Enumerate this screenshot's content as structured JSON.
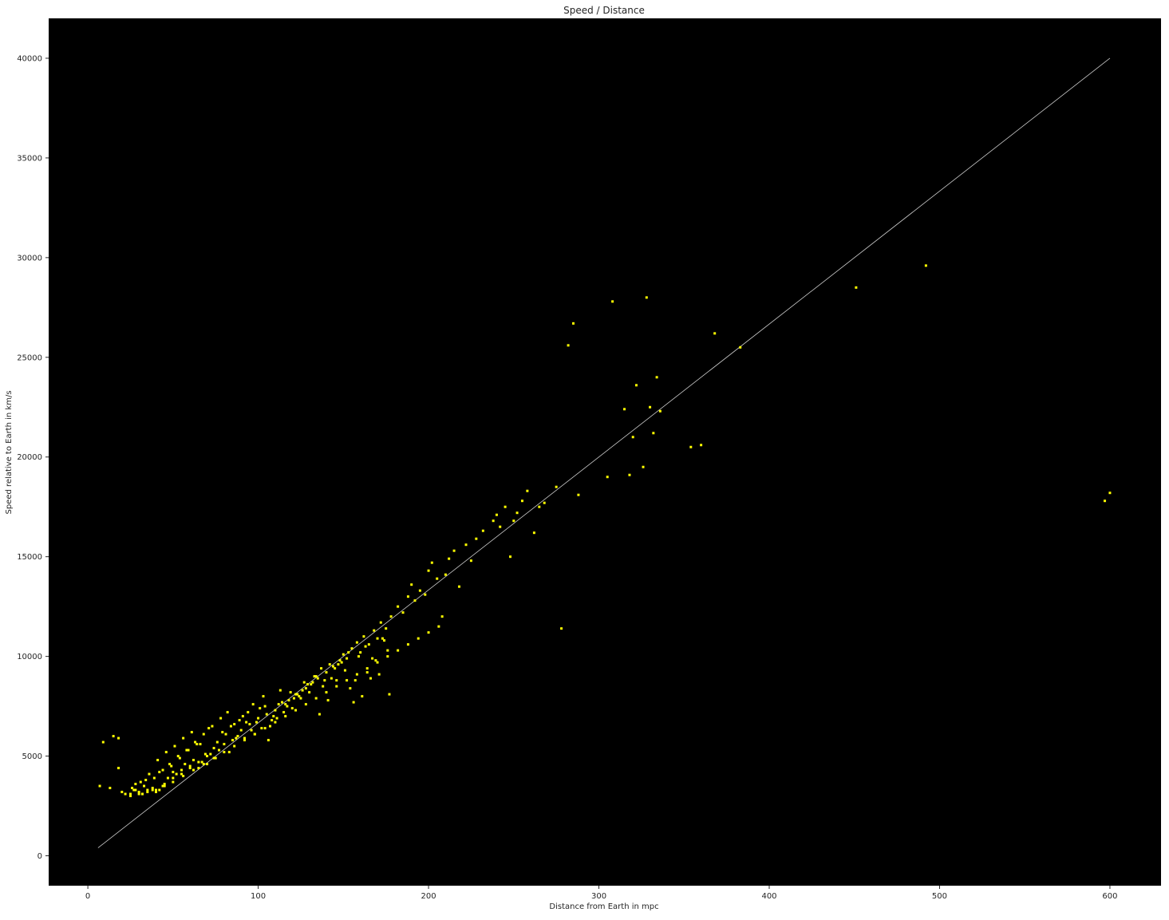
{
  "chart_data": {
    "type": "scatter",
    "title": "Speed / Distance",
    "xlabel": "Distance from Earth in mpc",
    "ylabel": "Speed relative to Earth in km/s",
    "xlim": [
      -23,
      630
    ],
    "ylim": [
      -1500,
      42000
    ],
    "xticks": [
      0,
      100,
      200,
      300,
      400,
      500,
      600
    ],
    "yticks": [
      0,
      5000,
      10000,
      15000,
      20000,
      25000,
      30000,
      35000,
      40000
    ],
    "grid": false,
    "legend": "none",
    "colors": {
      "plot_background": "#000000",
      "points": "#ffff00",
      "fit_line": "#cccccc"
    },
    "fit_line": {
      "x": [
        6,
        600
      ],
      "y": [
        400,
        40000
      ]
    },
    "series": [
      {
        "x": [
          7,
          9,
          13,
          15,
          18,
          18,
          20,
          25,
          28,
          30,
          32,
          35,
          38,
          40,
          42,
          45,
          47,
          50,
          52,
          55,
          57,
          60,
          62,
          65,
          67,
          70,
          72,
          75,
          77,
          80,
          83,
          85,
          88,
          90,
          92,
          95,
          98,
          100,
          102,
          105,
          108,
          110,
          112,
          115,
          118,
          120,
          122,
          125,
          128,
          130,
          132,
          135,
          138,
          140,
          142,
          145,
          148,
          150,
          152,
          155,
          158,
          160,
          162,
          165,
          168,
          170,
          172,
          175,
          178,
          182,
          185,
          188,
          190,
          192,
          195,
          198,
          200,
          202,
          205,
          208,
          210,
          212,
          215,
          218,
          222,
          225,
          228,
          232,
          238,
          240,
          242,
          245,
          248,
          250,
          252,
          255,
          258,
          262,
          265,
          268,
          275,
          278,
          282,
          285,
          288,
          305,
          308,
          315,
          318,
          320,
          322,
          326,
          328,
          330,
          332,
          334,
          336,
          354,
          360,
          368,
          383,
          451,
          492,
          597,
          600,
          30,
          35,
          40,
          45,
          50,
          55,
          60,
          65,
          70,
          22,
          26,
          31,
          36,
          41,
          46,
          51,
          56,
          61,
          66,
          71,
          76,
          81,
          86,
          91,
          96,
          101,
          106,
          111,
          116,
          121,
          126,
          131,
          136,
          141,
          146,
          151,
          156,
          161,
          166,
          171,
          176,
          27,
          33,
          39,
          44,
          49,
          54,
          59,
          64,
          69,
          74,
          79,
          84,
          89,
          94,
          99,
          104,
          109,
          114,
          119,
          124,
          129,
          134,
          139,
          144,
          149,
          154,
          159,
          164,
          169,
          174,
          28,
          34,
          42,
          48,
          53,
          58,
          63,
          68,
          73,
          78,
          82,
          87,
          93,
          97,
          103,
          107,
          113,
          117,
          123,
          127,
          133,
          137,
          143,
          147,
          153,
          157,
          163,
          167,
          173,
          177,
          25,
          32,
          38,
          44,
          50,
          56,
          62,
          68,
          74,
          80,
          86,
          92,
          98,
          104,
          110,
          116,
          122,
          128,
          134,
          140,
          146,
          152,
          158,
          164,
          170,
          176,
          182,
          188,
          194,
          200,
          206
        ],
        "y": [
          3500,
          5700,
          3400,
          6000,
          4400,
          5900,
          3200,
          3100,
          3300,
          3200,
          3100,
          3300,
          3400,
          3200,
          3300,
          3500,
          3900,
          4200,
          4100,
          4300,
          4600,
          4500,
          4800,
          4400,
          4700,
          4600,
          5100,
          4900,
          5300,
          5600,
          5200,
          5800,
          6000,
          6300,
          5900,
          6600,
          6100,
          6900,
          6400,
          7100,
          6800,
          7300,
          7600,
          7200,
          7800,
          7400,
          8100,
          7900,
          8400,
          8200,
          8700,
          8900,
          8500,
          9200,
          9600,
          9400,
          9800,
          10100,
          9900,
          10400,
          10700,
          10200,
          11000,
          10600,
          11300,
          10900,
          11700,
          11400,
          12000,
          12500,
          12200,
          13000,
          13600,
          12800,
          13300,
          13100,
          14300,
          14700,
          13900,
          12000,
          14100,
          14900,
          15300,
          13500,
          15600,
          14800,
          15900,
          16300,
          16800,
          17100,
          16500,
          17500,
          15000,
          16800,
          17200,
          17800,
          18300,
          16200,
          17500,
          17700,
          18500,
          11400,
          25600,
          26700,
          18100,
          19000,
          27800,
          22400,
          19100,
          21000,
          23600,
          19500,
          28000,
          22500,
          21200,
          24000,
          22300,
          20500,
          20600,
          26200,
          25500,
          28500,
          29600,
          17800,
          18200,
          3100,
          3200,
          3300,
          3600,
          3900,
          4100,
          4400,
          4700,
          5000,
          3100,
          3400,
          3700,
          4100,
          4800,
          5200,
          5500,
          5900,
          6200,
          5600,
          6400,
          5700,
          6100,
          6600,
          7000,
          6300,
          7400,
          5800,
          6900,
          7600,
          7900,
          8300,
          8600,
          7100,
          7800,
          8800,
          9300,
          7700,
          8000,
          8900,
          9100,
          10300,
          3300,
          3500,
          3900,
          4300,
          4500,
          4900,
          5300,
          5600,
          5100,
          5400,
          6200,
          6500,
          6800,
          7200,
          6700,
          7500,
          7000,
          7700,
          8200,
          8000,
          8600,
          9000,
          8800,
          9500,
          9700,
          8400,
          10000,
          9200,
          9800,
          10800,
          3600,
          3800,
          4200,
          4600,
          5000,
          5300,
          5700,
          6100,
          6500,
          6900,
          7200,
          5900,
          6700,
          7600,
          8000,
          6500,
          8300,
          7500,
          8100,
          8700,
          9000,
          9400,
          8900,
          9600,
          10200,
          8800,
          10500,
          9900,
          10900,
          8100,
          3000,
          3100,
          3300,
          3500,
          3700,
          4000,
          4300,
          4600,
          4900,
          5200,
          5500,
          5800,
          6100,
          6400,
          6700,
          7000,
          7300,
          7600,
          7900,
          8200,
          8500,
          8800,
          9100,
          9400,
          9700,
          10000,
          10300,
          10600,
          10900,
          11200,
          11500
        ]
      }
    ]
  }
}
